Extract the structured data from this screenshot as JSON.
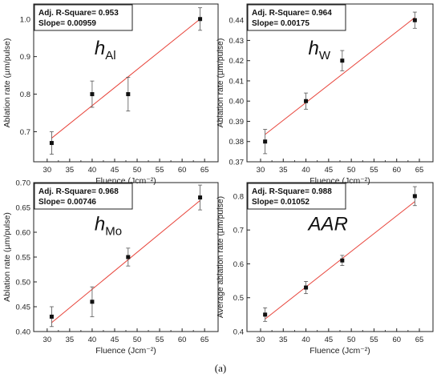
{
  "figure": {
    "caption": "(a)"
  },
  "colors": {
    "fit_line": "#e8453c",
    "point": "#111111",
    "error_bar": "#555555",
    "axis": "#222222"
  },
  "chart_data": [
    {
      "type": "scatter",
      "label": "h",
      "label_subscript": "Al",
      "annotation": [
        "Adj. R-Square= 0.953",
        "Slope= 0.00959"
      ],
      "xlabel": "Fluence (Jcm⁻²)",
      "ylabel": "Ablation rate (µm/pulse)",
      "xlim": [
        27,
        68
      ],
      "ylim": [
        0.62,
        1.04
      ],
      "xticks": [
        30,
        35,
        40,
        45,
        50,
        55,
        60,
        65
      ],
      "yticks": [
        0.7,
        0.8,
        0.9,
        1.0
      ],
      "ytick_labels": [
        "0.7",
        "0.8",
        "0.9",
        "1.0"
      ],
      "x": [
        31,
        40,
        48,
        64
      ],
      "y": [
        0.67,
        0.8,
        0.8,
        1.0
      ],
      "yerr": [
        0.03,
        0.035,
        0.045,
        0.03
      ],
      "fit": {
        "x": [
          31,
          64
        ],
        "y": [
          0.683,
          1.0
        ]
      }
    },
    {
      "type": "scatter",
      "label": "h",
      "label_subscript": "W",
      "annotation": [
        "Adj. R-Square= 0.964",
        "Slope= 0.00175"
      ],
      "xlabel": "Fluence (Jcm⁻²)",
      "ylabel": "Ablation rate (µm/pulse)",
      "xlim": [
        27,
        68
      ],
      "ylim": [
        0.37,
        0.448
      ],
      "xticks": [
        30,
        35,
        40,
        45,
        50,
        55,
        60,
        65
      ],
      "yticks": [
        0.37,
        0.38,
        0.39,
        0.4,
        0.41,
        0.42,
        0.43,
        0.44
      ],
      "ytick_labels": [
        "0.37",
        "0.38",
        "0.39",
        "0.40",
        "0.41",
        "0.42",
        "0.43",
        "0.44"
      ],
      "x": [
        31,
        40,
        48,
        64
      ],
      "y": [
        0.38,
        0.4,
        0.42,
        0.44
      ],
      "yerr": [
        0.006,
        0.004,
        0.005,
        0.004
      ],
      "fit": {
        "x": [
          31,
          64
        ],
        "y": [
          0.3835,
          0.4413
        ]
      }
    },
    {
      "type": "scatter",
      "label": "h",
      "label_subscript": "Mo",
      "annotation": [
        "Adj. R-Square= 0.968",
        "Slope= 0.00746"
      ],
      "xlabel": "Fluence (Jcm⁻²)",
      "ylabel": "Ablation rate (µm/pulse)",
      "xlim": [
        27,
        68
      ],
      "ylim": [
        0.4,
        0.7
      ],
      "xticks": [
        30,
        35,
        40,
        45,
        50,
        55,
        60,
        65
      ],
      "yticks": [
        0.4,
        0.45,
        0.5,
        0.55,
        0.6,
        0.65,
        0.7
      ],
      "ytick_labels": [
        "0.40",
        "0.45",
        "0.50",
        "0.55",
        "0.60",
        "0.65",
        "0.70"
      ],
      "x": [
        31,
        40,
        48,
        64
      ],
      "y": [
        0.43,
        0.46,
        0.55,
        0.67
      ],
      "yerr": [
        0.02,
        0.03,
        0.018,
        0.025
      ],
      "fit": {
        "x": [
          31,
          64
        ],
        "y": [
          0.418,
          0.664
        ]
      }
    },
    {
      "type": "scatter",
      "label": "AAR",
      "label_subscript": "",
      "annotation": [
        "Adj. R-Square= 0.988",
        "Slope= 0.01052"
      ],
      "xlabel": "Fluence (Jcm⁻²)",
      "ylabel": "Average ablation rate (µm/pulse)",
      "xlim": [
        27,
        68
      ],
      "ylim": [
        0.4,
        0.84
      ],
      "xticks": [
        30,
        35,
        40,
        45,
        50,
        55,
        60,
        65
      ],
      "yticks": [
        0.4,
        0.5,
        0.6,
        0.7,
        0.8
      ],
      "ytick_labels": [
        "0.4",
        "0.5",
        "0.6",
        "0.7",
        "0.8"
      ],
      "x": [
        31,
        40,
        48,
        64
      ],
      "y": [
        0.45,
        0.53,
        0.61,
        0.8
      ],
      "yerr": [
        0.02,
        0.018,
        0.015,
        0.028
      ],
      "fit": {
        "x": [
          31,
          64
        ],
        "y": [
          0.437,
          0.784
        ]
      }
    }
  ]
}
